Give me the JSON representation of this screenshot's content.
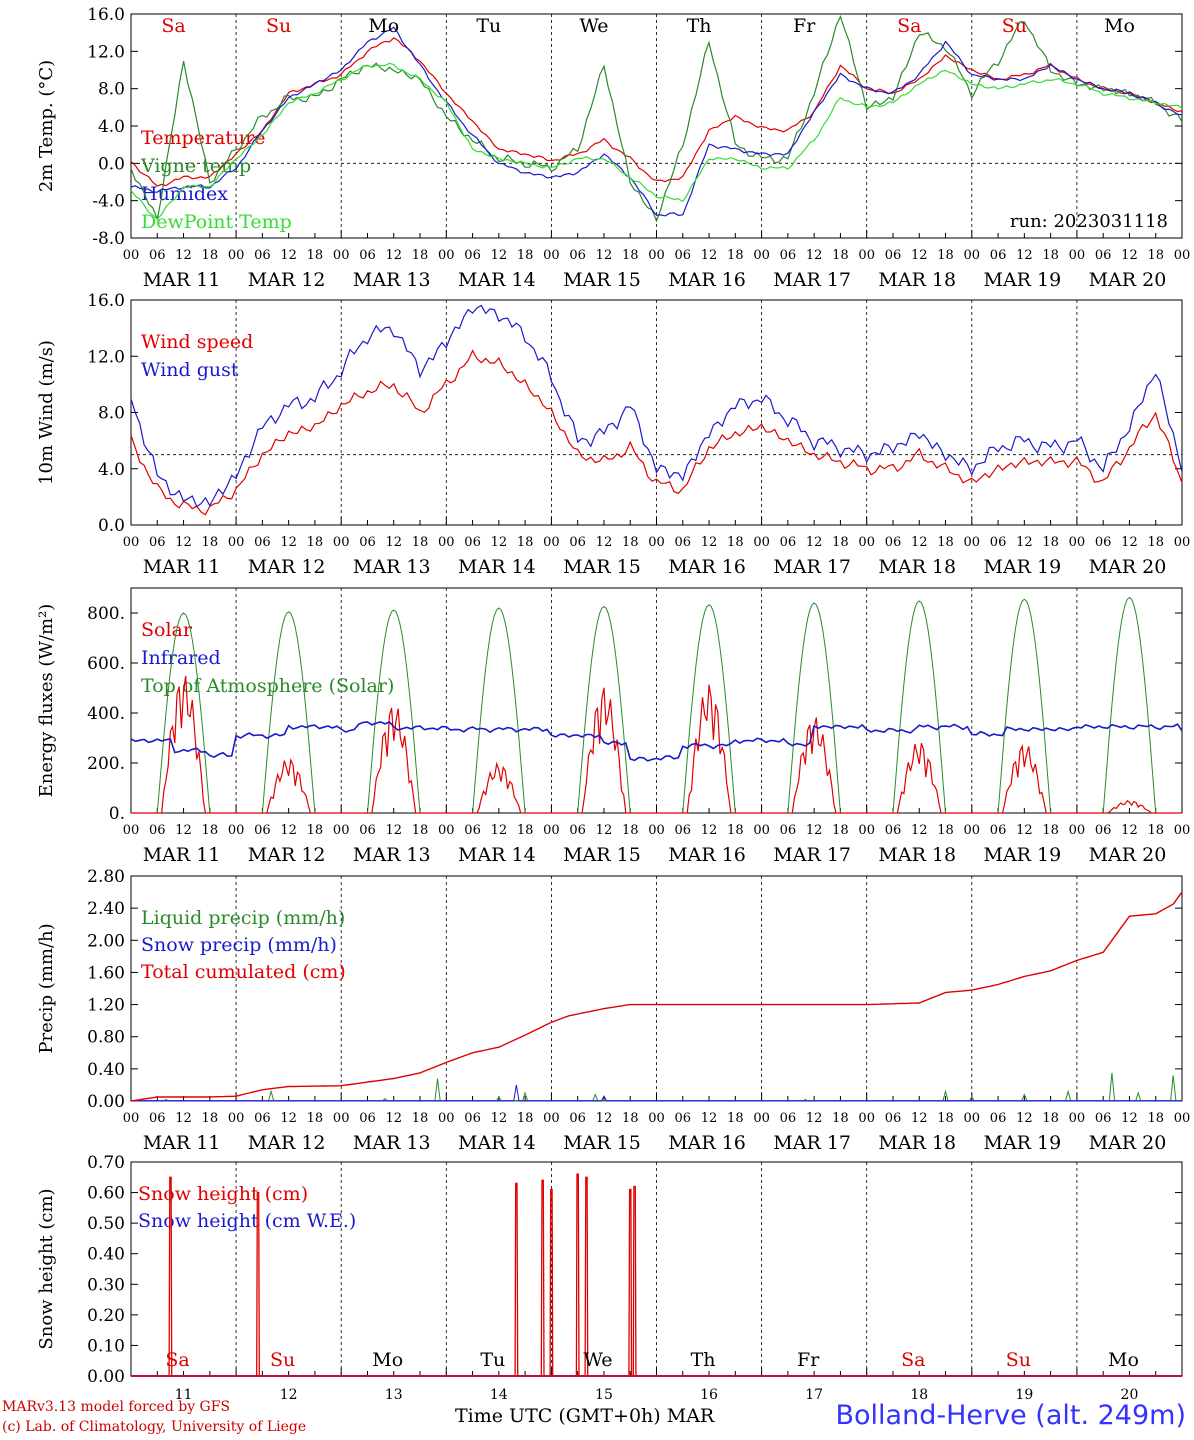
{
  "footer": {
    "credit_line1": "MARv3.13 model forced by GFS",
    "credit_line2": "(c) Lab. of Climatology, University of Liege",
    "station": "Bolland-Herve (alt. 249m)",
    "xaxis_title": "Time UTC (GMT+0h)",
    "month_label": "MAR"
  },
  "chart_data": [
    {
      "type": "line",
      "ylabel": "2m Temp. (°C)",
      "ylim": [
        -8,
        16
      ],
      "yticks": [
        "-8.0",
        "-4.0",
        "0.0",
        "4.0",
        "8.0",
        "12.0",
        "16.0"
      ],
      "reference_line": 0,
      "run_label": "run: 2023031118",
      "day_names": [
        "Sa",
        "Su",
        "Mo",
        "Tu",
        "We",
        "Th",
        "Fr",
        "Sa",
        "Su",
        "Mo"
      ],
      "day_name_colors": [
        "#e00000",
        "#e00000",
        "#000000",
        "#000000",
        "#000000",
        "#000000",
        "#000000",
        "#e00000",
        "#e00000",
        "#000000"
      ],
      "x_hours": [
        0,
        6,
        12,
        18,
        24,
        30,
        36,
        42,
        48,
        54,
        60,
        66,
        72,
        78,
        84,
        90,
        96,
        102,
        108,
        114,
        120,
        126,
        132,
        138,
        144,
        150,
        156,
        162,
        168,
        174,
        180,
        186,
        192,
        198,
        204,
        210,
        216,
        222,
        228,
        234,
        240
      ],
      "series": [
        {
          "name": "Temperature",
          "color": "#e00000",
          "values": [
            0.2,
            -2.5,
            -1.5,
            -1.5,
            1.0,
            3.5,
            7.5,
            8.5,
            9.5,
            12.0,
            13.5,
            11.0,
            7.5,
            4.5,
            1.5,
            1.0,
            0.3,
            1.0,
            2.5,
            0.5,
            -2.0,
            -1.5,
            3.5,
            5.0,
            3.8,
            3.5,
            5.5,
            10.5,
            8.0,
            7.5,
            9.0,
            11.5,
            10.0,
            9.0,
            9.5,
            10.5,
            9.0,
            8.0,
            7.5,
            6.5,
            5.5
          ]
        },
        {
          "name": "Vigne temp",
          "color": "#2a8a2a",
          "values": [
            -0.5,
            -6.0,
            11.0,
            -2.0,
            1.5,
            5.0,
            7.0,
            7.0,
            9.0,
            10.5,
            10.0,
            9.0,
            5.0,
            2.5,
            0.5,
            0.0,
            -0.5,
            1.5,
            10.5,
            -2.0,
            -6.0,
            2.0,
            13.0,
            2.0,
            0.5,
            0.5,
            7.5,
            16.0,
            6.0,
            7.0,
            14.0,
            12.5,
            7.5,
            11.0,
            15.5,
            10.0,
            8.5,
            8.0,
            7.5,
            6.5,
            4.5
          ]
        },
        {
          "name": "Humidex",
          "color": "#1a1acc",
          "values": [
            -2.5,
            -3.0,
            -2.5,
            -2.5,
            -0.5,
            3.5,
            7.0,
            8.5,
            10.0,
            13.0,
            14.5,
            10.5,
            6.5,
            3.0,
            0.0,
            -1.0,
            -1.5,
            -1.0,
            1.0,
            -1.5,
            -5.5,
            -5.5,
            2.0,
            1.5,
            1.0,
            1.0,
            5.5,
            9.5,
            8.0,
            7.5,
            9.5,
            13.0,
            9.5,
            9.0,
            9.0,
            10.5,
            9.0,
            8.0,
            7.5,
            6.5,
            5.0
          ]
        },
        {
          "name": "DewPoint Temp",
          "color": "#33dd33",
          "values": [
            -3.0,
            -6.0,
            -2.5,
            -2.5,
            0.5,
            3.0,
            6.5,
            7.5,
            9.0,
            10.5,
            10.5,
            9.0,
            6.5,
            1.5,
            0.5,
            0.0,
            -0.5,
            0.5,
            0.5,
            -1.5,
            -3.5,
            -4.0,
            0.5,
            0.5,
            -0.5,
            -0.5,
            2.5,
            7.0,
            6.0,
            6.5,
            8.5,
            10.0,
            8.5,
            8.0,
            8.5,
            9.0,
            8.5,
            7.5,
            7.0,
            6.5,
            6.0
          ]
        }
      ]
    },
    {
      "type": "line",
      "ylabel": "10m Wind (m/s)",
      "ylim": [
        0,
        16
      ],
      "yticks": [
        "0.0",
        "4.0",
        "8.0",
        "12.0",
        "16.0"
      ],
      "reference_line": 5,
      "x_hours": [
        0,
        6,
        12,
        18,
        24,
        30,
        36,
        42,
        48,
        54,
        60,
        66,
        72,
        78,
        84,
        90,
        96,
        102,
        108,
        114,
        120,
        126,
        132,
        138,
        144,
        150,
        156,
        162,
        168,
        174,
        180,
        186,
        192,
        198,
        204,
        210,
        216,
        222,
        228,
        234,
        240
      ],
      "series": [
        {
          "name": "Wind speed",
          "color": "#e00000",
          "values": [
            6.0,
            2.5,
            1.3,
            1.1,
            2.5,
            5.0,
            6.5,
            7.0,
            8.5,
            9.5,
            10.0,
            8.0,
            10.0,
            12.0,
            11.5,
            10.0,
            8.0,
            5.0,
            4.5,
            5.5,
            3.0,
            2.5,
            5.5,
            6.5,
            7.0,
            6.0,
            5.0,
            4.5,
            4.0,
            4.0,
            5.0,
            4.0,
            3.0,
            4.0,
            4.5,
            4.5,
            4.5,
            3.0,
            5.5,
            8.0,
            3.0
          ]
        },
        {
          "name": "Wind gust",
          "color": "#1a1acc",
          "values": [
            9.0,
            3.5,
            1.8,
            1.6,
            3.5,
            7.0,
            8.5,
            9.0,
            11.0,
            13.5,
            14.0,
            11.0,
            13.0,
            15.5,
            15.0,
            13.5,
            10.5,
            6.0,
            6.5,
            8.5,
            4.0,
            3.5,
            6.5,
            8.5,
            9.0,
            7.5,
            6.0,
            5.5,
            5.0,
            5.5,
            6.5,
            5.0,
            4.0,
            5.5,
            6.0,
            5.5,
            6.0,
            4.0,
            7.0,
            11.0,
            4.0
          ]
        }
      ]
    },
    {
      "type": "line",
      "ylabel": "Energy fluxes (W/m²)",
      "ylim": [
        0,
        900
      ],
      "yticks": [
        "0.",
        "200.",
        "400.",
        "600.",
        "800."
      ],
      "series": [
        {
          "name": "Solar",
          "color": "#e00000",
          "daily_peak": [
            560,
            220,
            440,
            200,
            510,
            520,
            390,
            290,
            280,
            50
          ]
        },
        {
          "name": "Infrared",
          "color": "#1a1acc",
          "hourly_steps": [
            [
              0,
              290
            ],
            [
              10,
              250
            ],
            [
              18,
              230
            ],
            [
              24,
              310
            ],
            [
              36,
              345
            ],
            [
              48,
              330
            ],
            [
              52,
              360
            ],
            [
              60,
              340
            ],
            [
              72,
              335
            ],
            [
              96,
              310
            ],
            [
              108,
              280
            ],
            [
              114,
              215
            ],
            [
              120,
              220
            ],
            [
              126,
              270
            ],
            [
              138,
              290
            ],
            [
              150,
              275
            ],
            [
              156,
              345
            ],
            [
              168,
              330
            ],
            [
              180,
              345
            ],
            [
              192,
              315
            ],
            [
              200,
              335
            ],
            [
              216,
              345
            ],
            [
              240,
              330
            ]
          ]
        },
        {
          "name": "Top of Atmosphere (Solar)",
          "color": "#2a8a2a",
          "daily_peak": [
            800,
            805,
            812,
            820,
            826,
            833,
            840,
            848,
            855,
            862
          ]
        }
      ]
    },
    {
      "type": "line",
      "ylabel": "Precip (mm/h)",
      "ylim": [
        0,
        2.8
      ],
      "yticks": [
        "0.00",
        "0.40",
        "0.80",
        "1.20",
        "1.60",
        "2.00",
        "2.40",
        "2.80"
      ],
      "series": [
        {
          "name": "Liquid precip (mm/h)",
          "color": "#2a8a2a",
          "spikes": [
            [
              8,
              0.02
            ],
            [
              32,
              0.12
            ],
            [
              58,
              0.03
            ],
            [
              70,
              0.28
            ],
            [
              84,
              0.05
            ],
            [
              90,
              0.1
            ],
            [
              106,
              0.08
            ],
            [
              154,
              0.02
            ],
            [
              186,
              0.12
            ],
            [
              192,
              0.05
            ],
            [
              204,
              0.08
            ],
            [
              214,
              0.12
            ],
            [
              224,
              0.35
            ],
            [
              230,
              0.1
            ],
            [
              238,
              0.32
            ]
          ]
        },
        {
          "name": "Snow precip (mm/h)",
          "color": "#1a1acc",
          "spikes": [
            [
              88,
              0.2
            ],
            [
              108,
              0.06
            ]
          ]
        },
        {
          "name": "Total cumulated (cm)",
          "color": "#e00000",
          "x_hours": [
            0,
            6,
            12,
            18,
            24,
            30,
            36,
            48,
            60,
            66,
            72,
            78,
            84,
            90,
            96,
            100,
            108,
            114,
            120,
            132,
            144,
            156,
            168,
            180,
            186,
            192,
            198,
            204,
            210,
            216,
            222,
            228,
            234,
            238,
            240
          ],
          "values": [
            0.0,
            0.05,
            0.05,
            0.05,
            0.06,
            0.14,
            0.18,
            0.19,
            0.28,
            0.35,
            0.48,
            0.6,
            0.67,
            0.82,
            0.98,
            1.06,
            1.15,
            1.2,
            1.2,
            1.2,
            1.2,
            1.2,
            1.2,
            1.22,
            1.35,
            1.38,
            1.45,
            1.55,
            1.62,
            1.75,
            1.85,
            2.3,
            2.33,
            2.45,
            2.6
          ]
        }
      ]
    },
    {
      "type": "line",
      "ylabel": "Snow height (cm)",
      "ylim": [
        0,
        0.7
      ],
      "yticks": [
        "0.00",
        "0.10",
        "0.20",
        "0.30",
        "0.40",
        "0.50",
        "0.60",
        "0.70"
      ],
      "x_ticklabels": [
        "11",
        "12",
        "13",
        "14",
        "15",
        "16",
        "17",
        "18",
        "19",
        "20"
      ],
      "series": [
        {
          "name": "Snow height (cm)",
          "color": "#e00000",
          "spikes": [
            [
              9,
              0.65
            ],
            [
              29,
              0.6
            ],
            [
              88,
              0.63
            ],
            [
              94,
              0.64
            ],
            [
              96,
              0.61
            ],
            [
              102,
              0.66
            ],
            [
              104,
              0.65
            ],
            [
              114,
              0.61
            ],
            [
              115,
              0.62
            ]
          ]
        },
        {
          "name": "Snow height (cm W.E.)",
          "color": "#1a1acc",
          "values": []
        }
      ]
    }
  ],
  "xaxis": {
    "hour_labels": [
      "00",
      "06",
      "12",
      "18"
    ],
    "end_hour_label": "00",
    "date_labels": [
      "MAR 11",
      "MAR 12",
      "MAR 13",
      "MAR 14",
      "MAR 15",
      "MAR 16",
      "MAR 17",
      "MAR 18",
      "MAR 19",
      "MAR 20"
    ]
  }
}
